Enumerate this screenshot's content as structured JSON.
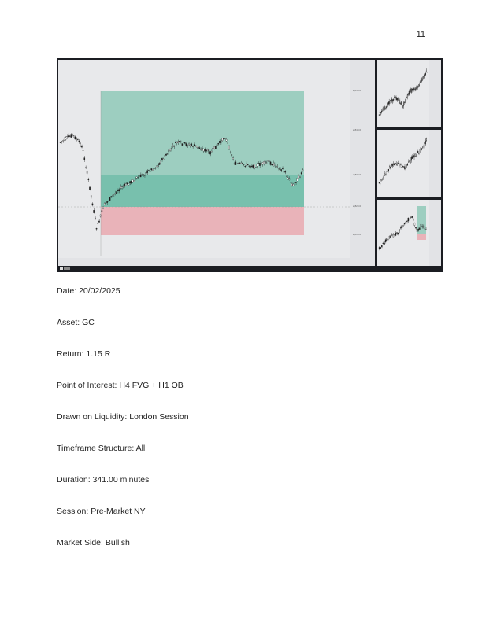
{
  "page": {
    "number": "11"
  },
  "fields": [
    {
      "label": "Date",
      "value": "20/02/2025"
    },
    {
      "label": "Asset",
      "value": "GC"
    },
    {
      "label": "Return",
      "value": "1.15 R"
    },
    {
      "label": "Point of Interest",
      "value": "H4 FVG + H1 OB"
    },
    {
      "label": "Drawn on Liquidity",
      "value": "London Session"
    },
    {
      "label": "Timeframe Structure",
      "value": "All"
    },
    {
      "label": "Duration",
      "value": "341.00 minutes"
    },
    {
      "label": "Session",
      "value": "Pre-Market NY"
    },
    {
      "label": "Market Side",
      "value": "Bullish"
    }
  ],
  "colors": {
    "profit_zone": "#8fc9b8",
    "entry_zone": "#5bb59e",
    "loss_zone": "#e9a9b0",
    "candle": "#1e1e1e",
    "chart_bg": "#e8e9eb",
    "frame": "#1b1d22"
  },
  "icons": [
    "tradingview-logo-icon"
  ]
}
